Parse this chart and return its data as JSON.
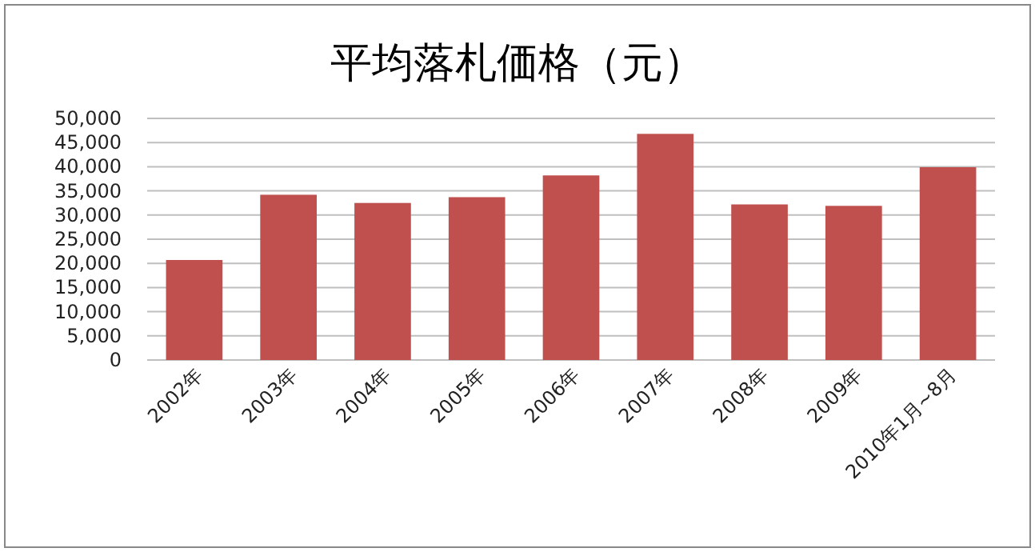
{
  "chart_data": {
    "type": "bar",
    "title": "平均落札価格（元）",
    "categories": [
      "2002年",
      "2003年",
      "2004年",
      "2005年",
      "2006年",
      "2007年",
      "2008年",
      "2009年",
      "2010年1月~8月"
    ],
    "values": [
      20700,
      34200,
      32500,
      33700,
      38200,
      46800,
      32200,
      31900,
      39900
    ],
    "color": "#c0504d",
    "ylim": [
      0,
      50000
    ],
    "yticks": [
      {
        "value": 0,
        "label": "0"
      },
      {
        "value": 5000,
        "label": "5,000"
      },
      {
        "value": 10000,
        "label": "10,000"
      },
      {
        "value": 15000,
        "label": "15,000"
      },
      {
        "value": 20000,
        "label": "20,000"
      },
      {
        "value": 25000,
        "label": "25,000"
      },
      {
        "value": 30000,
        "label": "30,000"
      },
      {
        "value": 35000,
        "label": "35,000"
      },
      {
        "value": 40000,
        "label": "40,000"
      },
      {
        "value": 45000,
        "label": "45,000"
      },
      {
        "value": 50000,
        "label": "50,000"
      }
    ],
    "grid": "y"
  }
}
